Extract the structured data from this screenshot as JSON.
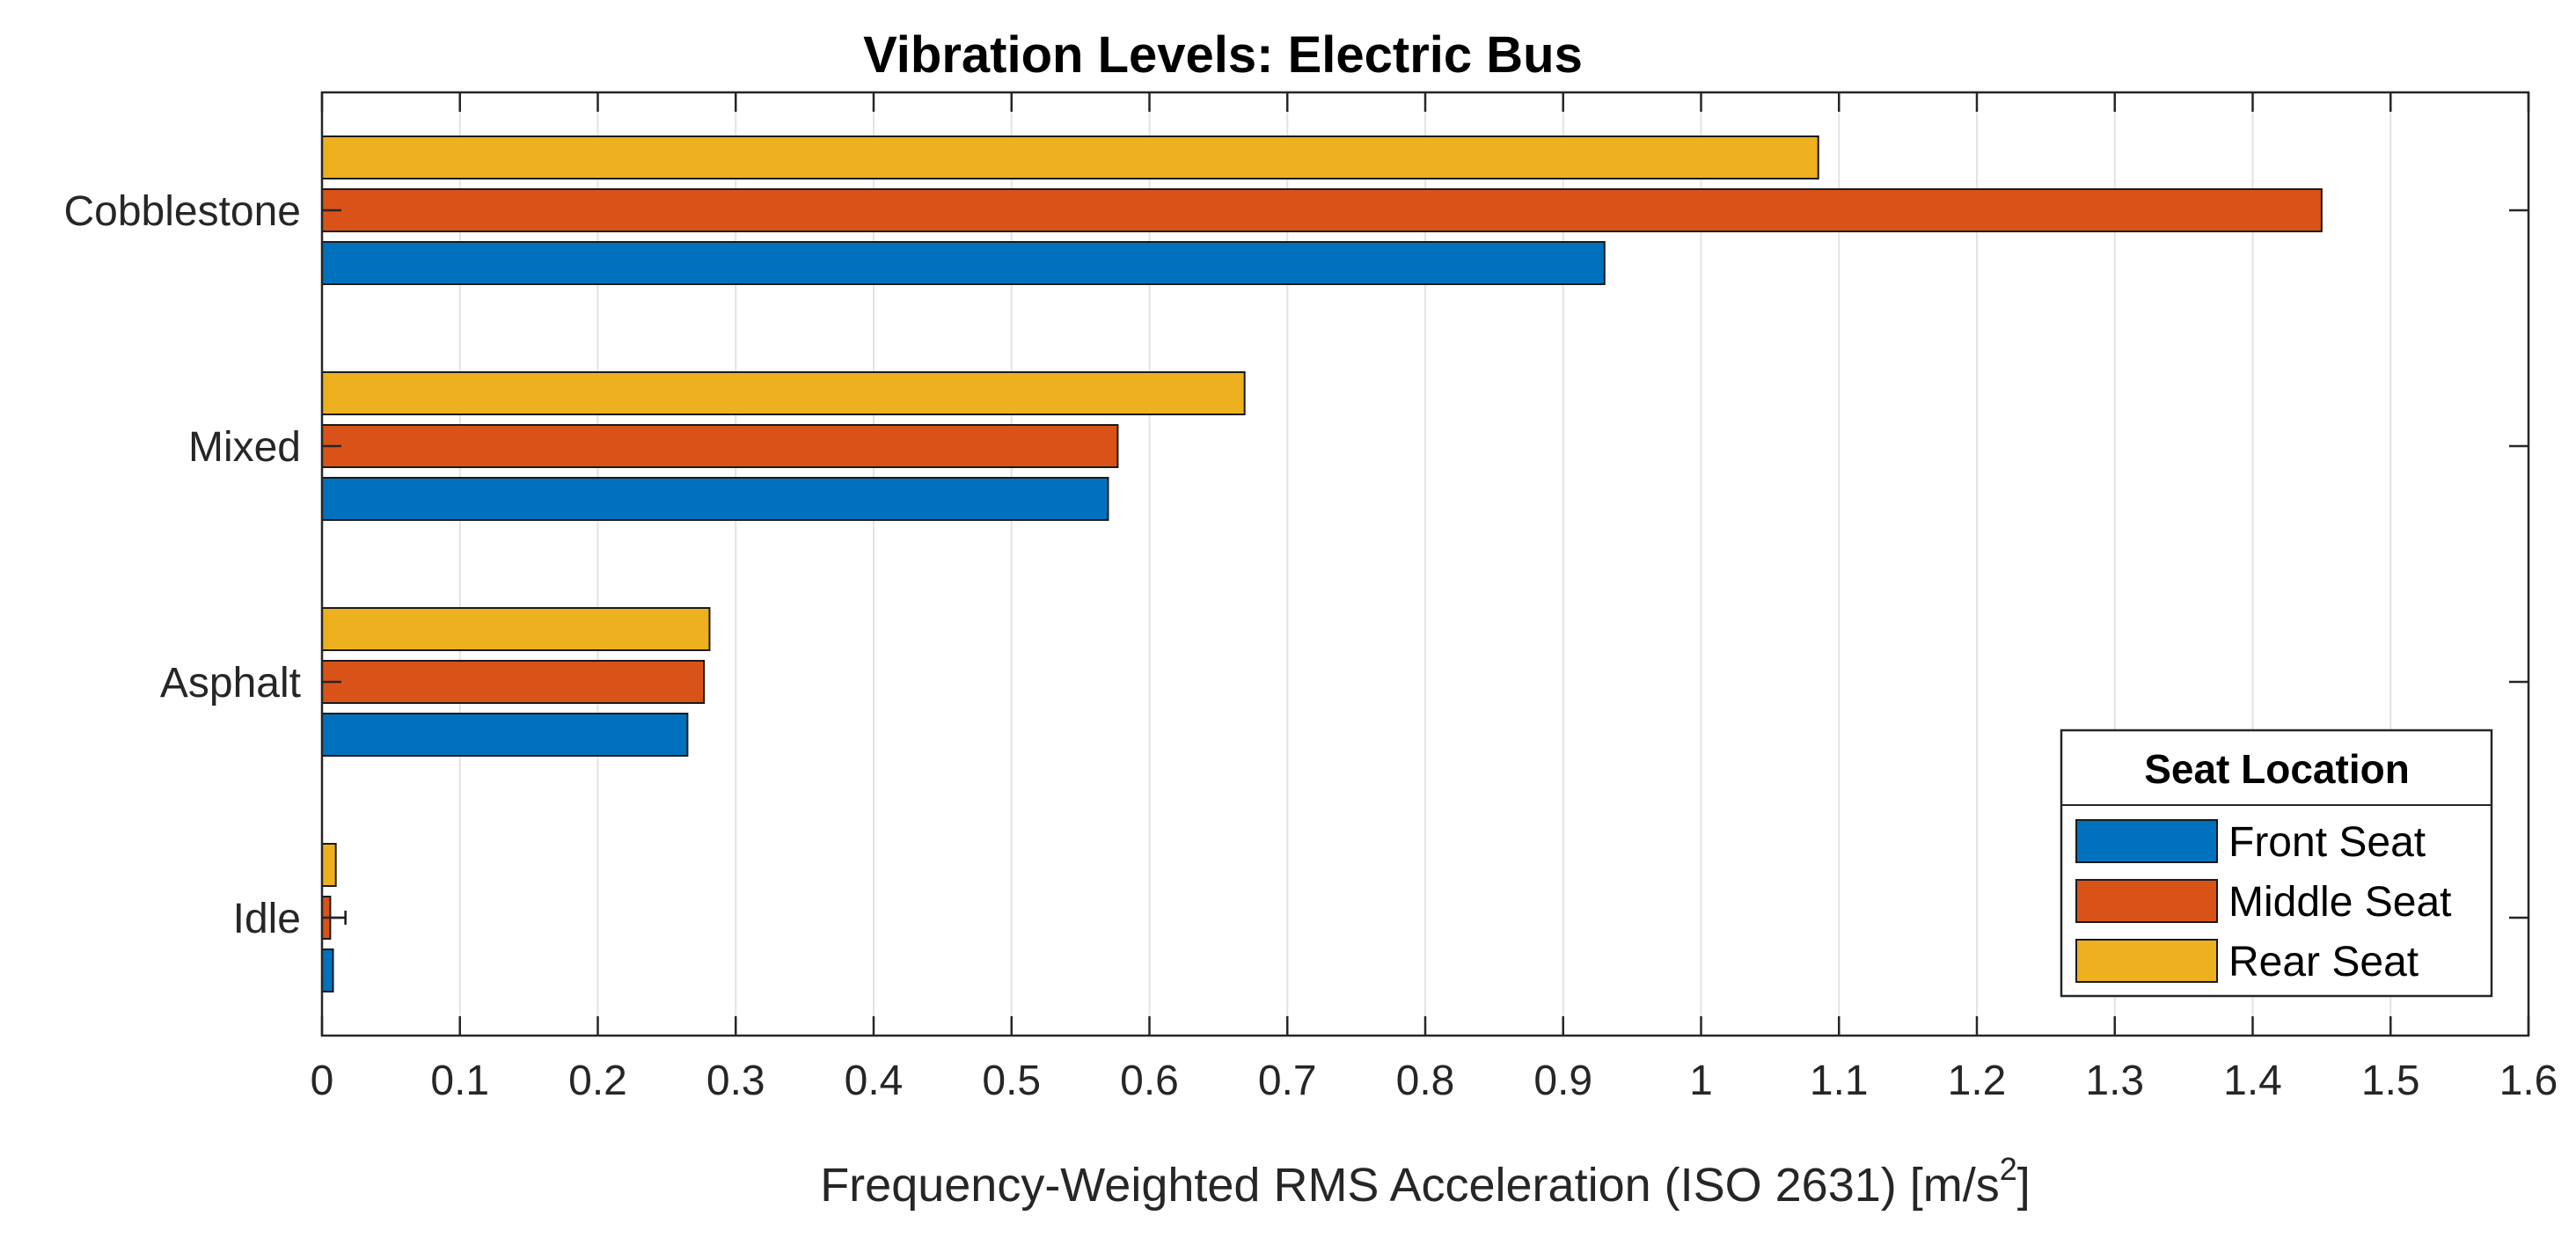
{
  "chart_data": {
    "type": "bar",
    "orientation": "horizontal",
    "title": "Vibration Levels: Electric Bus",
    "xlabel_main": "Frequency-Weighted RMS Acceleration (ISO 2631) [m/s",
    "xlabel_sup": "2",
    "xlabel_end": "]",
    "ylabel": "",
    "categories": [
      "Idle",
      "Asphalt",
      "Mixed",
      "Cobblestone"
    ],
    "series": [
      {
        "name": "Front Seat",
        "color": "#0072BD",
        "values": [
          0.008,
          0.265,
          0.57,
          0.93
        ]
      },
      {
        "name": "Middle Seat",
        "color": "#D95319",
        "values": [
          0.006,
          0.277,
          0.577,
          1.45
        ]
      },
      {
        "name": "Rear Seat",
        "color": "#EDB120",
        "values": [
          0.01,
          0.281,
          0.669,
          1.085
        ]
      }
    ],
    "xlim": [
      0,
      1.6
    ],
    "xticks": [
      0,
      0.1,
      0.2,
      0.3,
      0.4,
      0.5,
      0.6,
      0.7,
      0.8,
      0.9,
      1,
      1.1,
      1.2,
      1.3,
      1.4,
      1.5,
      1.6
    ],
    "xtick_labels": [
      "0",
      "0.1",
      "0.2",
      "0.3",
      "0.4",
      "0.5",
      "0.6",
      "0.7",
      "0.8",
      "0.9",
      "1",
      "1.1",
      "1.2",
      "1.3",
      "1.4",
      "1.5",
      "1.6"
    ],
    "grid": "x-major",
    "legend": {
      "title": "Seat Location",
      "location": "bottom-right"
    },
    "error_bar": {
      "category": "Idle",
      "series": "Middle Seat",
      "low": 0.006,
      "high": 0.017
    }
  }
}
